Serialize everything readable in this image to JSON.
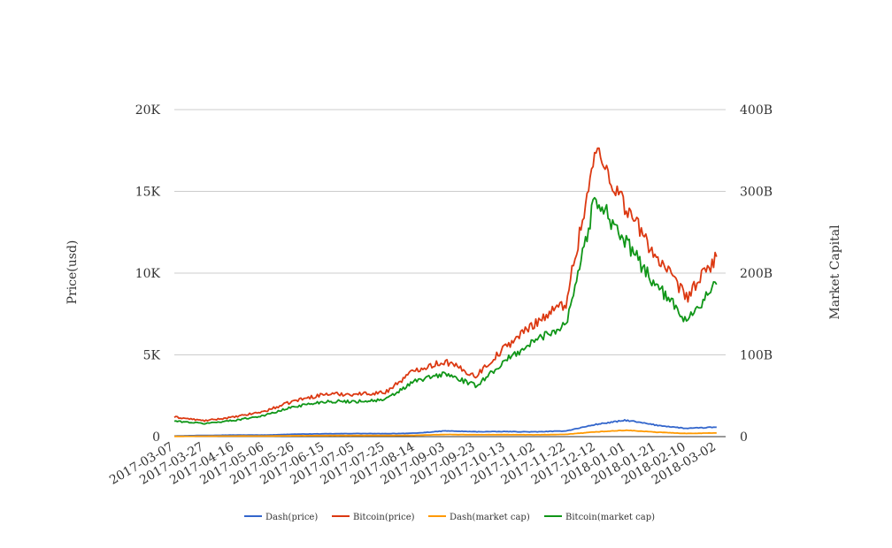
{
  "chart_data": {
    "type": "line",
    "title": "",
    "x": [
      "2017-03-07",
      "2017-03-27",
      "2017-04-16",
      "2017-05-06",
      "2017-05-26",
      "2017-06-15",
      "2017-07-05",
      "2017-07-25",
      "2017-08-14",
      "2017-09-03",
      "2017-09-23",
      "2017-10-13",
      "2017-11-02",
      "2017-11-22",
      "2017-12-12",
      "2018-01-01",
      "2018-01-21",
      "2018-02-10",
      "2018-03-02"
    ],
    "x_tick_labels": [
      "2017-03-07",
      "2017-03-27",
      "2017-04-16",
      "2017-05-06",
      "2017-05-26",
      "2017-06-15",
      "2017-07-05",
      "2017-07-25",
      "2017-08-14",
      "2017-09-03",
      "2017-09-23",
      "2017-10-13",
      "2017-11-02",
      "2017-11-22",
      "2017-12-12",
      "2018-01-01",
      "2018-01-21",
      "2018-02-10",
      "2018-03-02"
    ],
    "x_range": [
      "2017-03-07",
      "2018-03-08"
    ],
    "y_left": {
      "label": "Price(usd)",
      "range": [
        0,
        20000
      ],
      "ticks": [
        0,
        5000,
        10000,
        15000,
        20000
      ],
      "tick_labels": [
        "0",
        "5K",
        "10K",
        "15K",
        "20K"
      ]
    },
    "y_right": {
      "label": "Market Capital",
      "range": [
        0,
        400000000000
      ],
      "ticks": [
        0,
        100000000000,
        200000000000,
        300000000000,
        400000000000
      ],
      "tick_labels": [
        "0",
        "100B",
        "200B",
        "300B",
        "400B"
      ]
    },
    "grid": true,
    "legend_position": "bottom",
    "series": [
      {
        "name": "Dash(price)",
        "axis": "left",
        "color": "#3366cc",
        "values": [
          40,
          75,
          95,
          95,
          150,
          170,
          190,
          180,
          210,
          350,
          300,
          310,
          290,
          350,
          750,
          1000,
          700,
          500,
          580
        ]
      },
      {
        "name": "Bitcoin(price)",
        "axis": "left",
        "color": "#dc3912",
        "values": [
          1200,
          970,
          1200,
          1550,
          2200,
          2600,
          2600,
          2700,
          4100,
          4600,
          3700,
          5500,
          7000,
          8200,
          17500,
          14000,
          11000,
          8500,
          11000
        ]
      },
      {
        "name": "Dash(market cap)",
        "axis": "right",
        "color": "#ff9900",
        "values": [
          300000000,
          550000000,
          700000000,
          700000000,
          1100000000,
          1300000000,
          1400000000,
          1400000000,
          1600000000,
          2600000000,
          2300000000,
          2400000000,
          2200000000,
          2700000000,
          5800000000,
          7800000000,
          5400000000,
          3900000000,
          4500000000
        ]
      },
      {
        "name": "Bitcoin(market cap)",
        "axis": "right",
        "color": "#109618",
        "values": [
          19000000000,
          16000000000,
          20000000000,
          26000000000,
          37000000000,
          43000000000,
          43000000000,
          45000000000,
          68000000000,
          77000000000,
          62000000000,
          93000000000,
          118000000000,
          138000000000,
          295000000000,
          236000000000,
          185000000000,
          143000000000,
          186000000000
        ]
      }
    ]
  }
}
